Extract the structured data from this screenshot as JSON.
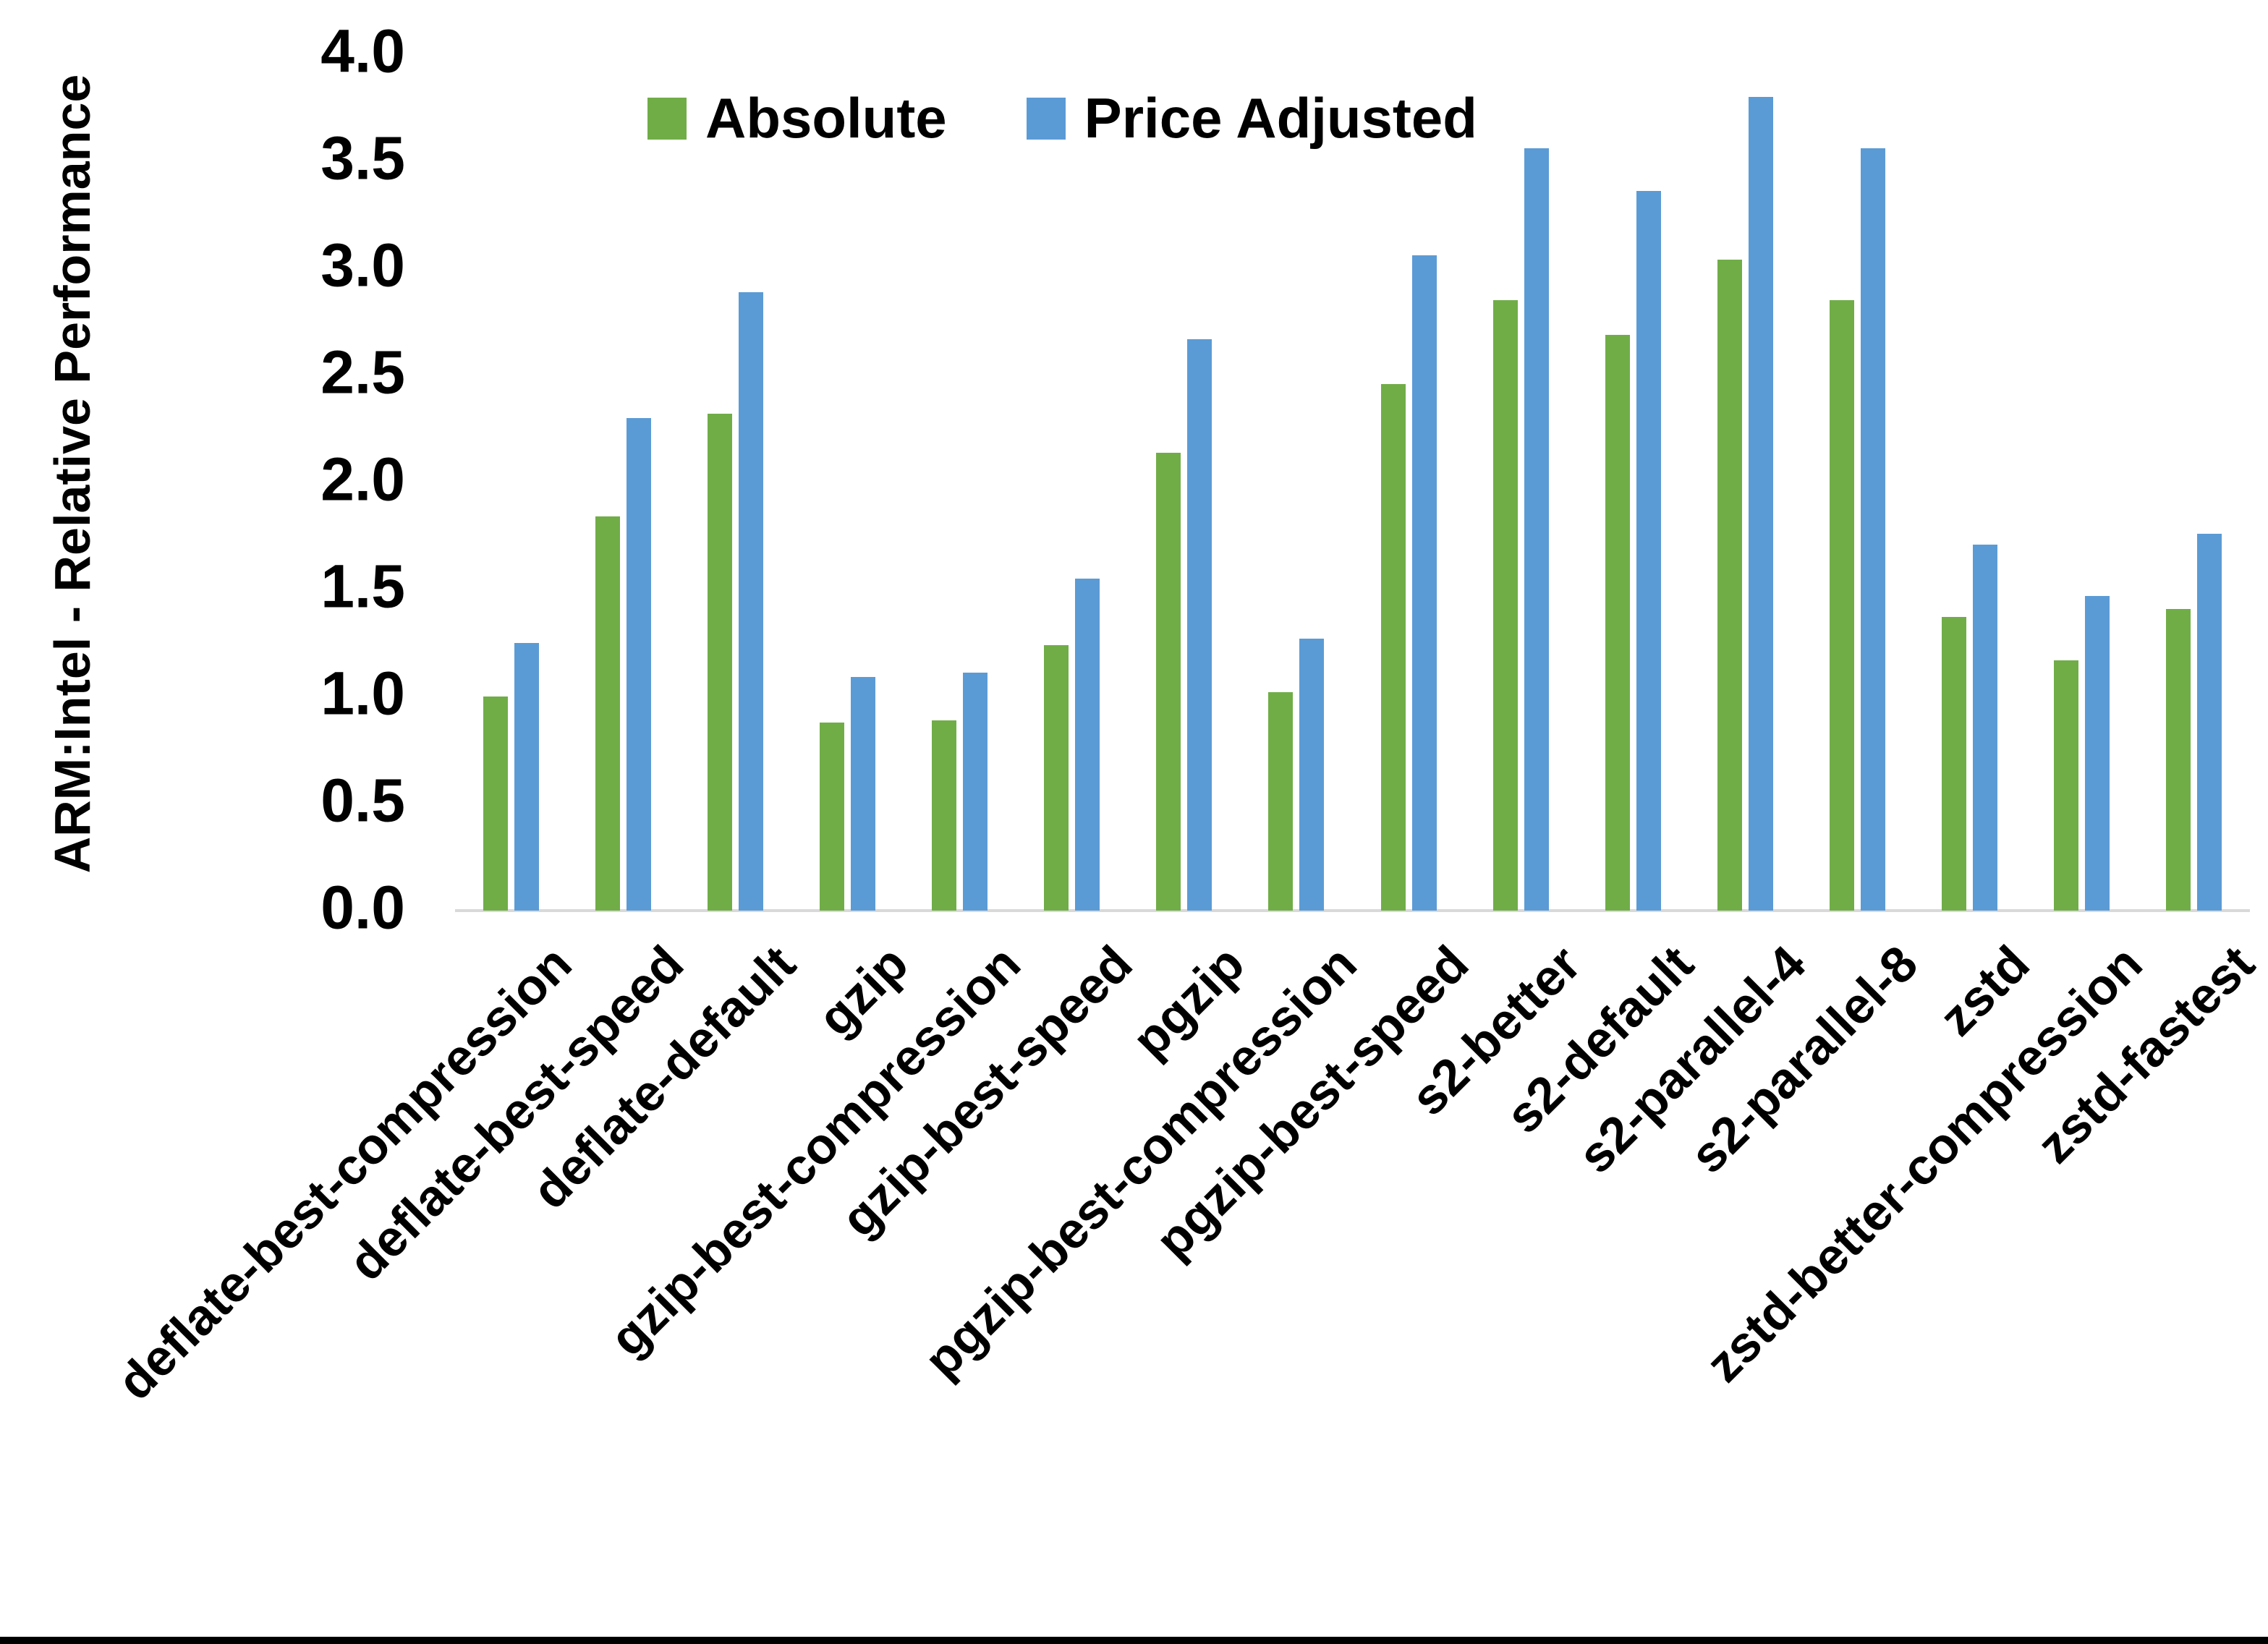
{
  "chart_data": {
    "type": "bar",
    "title": "",
    "xlabel": "",
    "ylabel": "ARM:Intel - Relative Performance",
    "ylim": [
      0.0,
      4.0
    ],
    "ytick_step": 0.5,
    "ytick_labels": [
      "0.0",
      "0.5",
      "1.0",
      "1.5",
      "2.0",
      "2.5",
      "3.0",
      "3.5",
      "4.0"
    ],
    "grid": false,
    "legend_position": "top-center",
    "categories": [
      "deflate-best-compression",
      "deflate-best-speed",
      "deflate-default",
      "gzip",
      "gzip-best-compression",
      "gzip-best-speed",
      "pgzip",
      "pgzip-best-compression",
      "pgzip-best-speed",
      "s2-better",
      "s2-default",
      "s2-parallel-4",
      "s2-parallel-8",
      "zstd",
      "zstd-better-compression",
      "zstd-fastest"
    ],
    "series": [
      {
        "name": "Absolute",
        "color": "#70AD47",
        "values": [
          1.0,
          1.84,
          2.32,
          0.88,
          0.89,
          1.24,
          2.14,
          1.02,
          2.46,
          2.85,
          2.69,
          3.04,
          2.85,
          1.37,
          1.17,
          1.41
        ]
      },
      {
        "name": "Price Adjusted",
        "color": "#5B9BD5",
        "values": [
          1.25,
          2.3,
          2.89,
          1.09,
          1.11,
          1.55,
          2.67,
          1.27,
          3.06,
          3.56,
          3.36,
          3.8,
          3.56,
          1.71,
          1.47,
          1.76
        ]
      }
    ],
    "axis_line_color": "#D9D9D9",
    "text_color": "#000000"
  }
}
